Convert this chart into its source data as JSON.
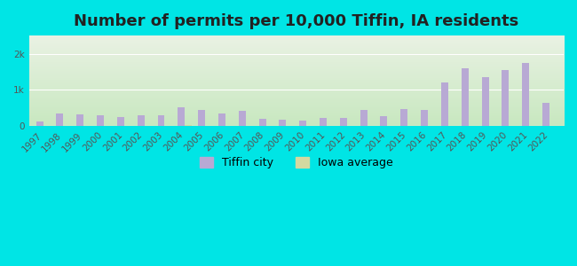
{
  "title": "Number of permits per 10,000 Tiffin, IA residents",
  "years": [
    1997,
    1998,
    1999,
    2000,
    2001,
    2002,
    2003,
    2004,
    2005,
    2006,
    2007,
    2008,
    2009,
    2010,
    2011,
    2012,
    2013,
    2014,
    2015,
    2016,
    2017,
    2018,
    2019,
    2020,
    2021,
    2022
  ],
  "tiffin_values": [
    120,
    340,
    330,
    290,
    260,
    290,
    310,
    520,
    450,
    350,
    420,
    200,
    190,
    150,
    220,
    220,
    450,
    270,
    460,
    450,
    1200,
    1600,
    1350,
    1550,
    1750,
    650
  ],
  "iowa_values": [
    10,
    10,
    10,
    10,
    10,
    10,
    10,
    20,
    15,
    10,
    10,
    10,
    10,
    10,
    10,
    10,
    10,
    10,
    10,
    10,
    10,
    10,
    10,
    10,
    10,
    10
  ],
  "tiffin_color": "#b8a9d4",
  "iowa_color": "#d4d9a0",
  "background_outer": "#00e5e5",
  "background_plot_top": "#eaf2e4",
  "background_plot_bottom": "#c8e8c0",
  "ylim": [
    0,
    2500
  ],
  "yticks": [
    0,
    1000,
    2000
  ],
  "ytick_labels": [
    "0",
    "1k",
    "2k"
  ],
  "bar_width": 0.35,
  "legend_labels": [
    "Tiffin city",
    "Iowa average"
  ],
  "title_fontsize": 13,
  "tick_fontsize": 7.5,
  "legend_fontsize": 9
}
